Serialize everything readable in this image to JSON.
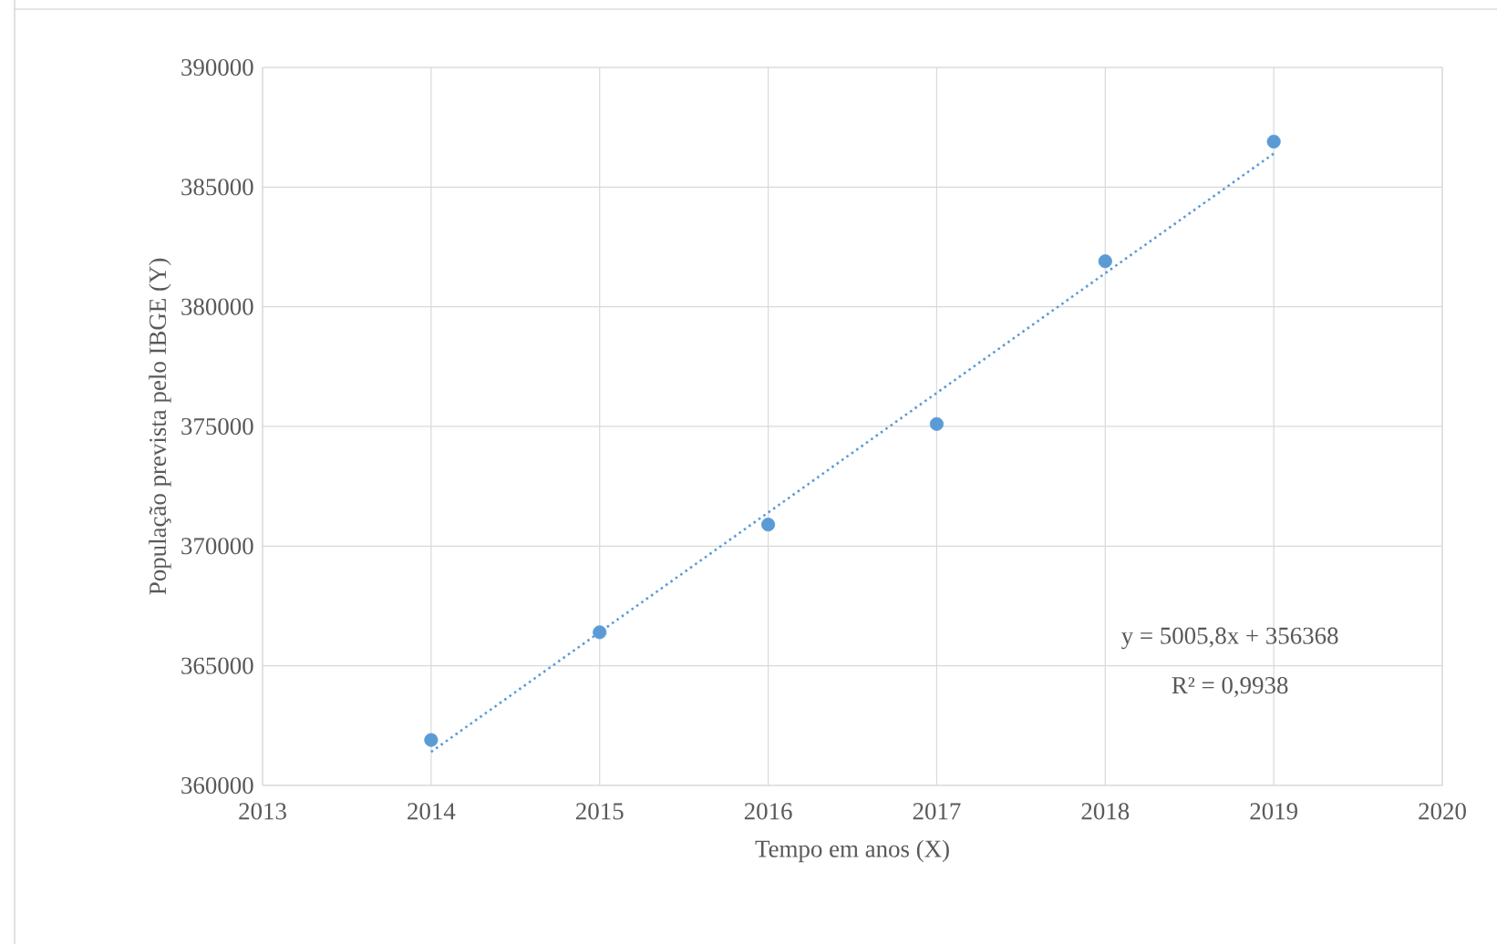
{
  "chart_data": {
    "type": "scatter",
    "xlabel": "Tempo em anos (X)",
    "ylabel": "População prevista pelo IBGE  (Y)",
    "annotations": [
      "y = 5005,8x  + 356368",
      "R² = 0,9938"
    ],
    "series": [
      {
        "color": "#5b9bd5",
        "marker": "circle",
        "x": [
          2014,
          2015,
          2016,
          2017,
          2018,
          2019
        ],
        "values": [
          361900,
          366400,
          370900,
          375100,
          381900,
          386900
        ]
      },
      {
        "type": "line",
        "color": "#5b9bd5",
        "marker": "none",
        "line_style": "dotted",
        "x": [
          2014,
          2019
        ],
        "values": [
          361400,
          386400
        ]
      }
    ],
    "xlim": [
      2013,
      2020
    ],
    "xticks": [
      2013,
      2014,
      2015,
      2016,
      2017,
      2018,
      2019,
      2020
    ],
    "ylim": [
      360000,
      390000
    ],
    "yticks": [
      360000,
      365000,
      370000,
      375000,
      380000,
      385000,
      390000
    ],
    "grid": true
  }
}
